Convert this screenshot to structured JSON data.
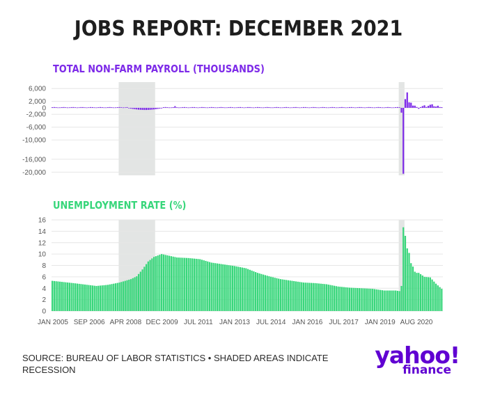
{
  "page": {
    "title": "JOBS REPORT: DECEMBER 2021"
  },
  "colors": {
    "payroll": "#7d2ae8",
    "unemployment": "#37d67a",
    "recession": "#e3e5e4",
    "text": "#1e1e1e",
    "grid": "#e6e6e6"
  },
  "chart_data": [
    {
      "type": "bar",
      "title": "TOTAL NON-FARM PAYROLL (THOUSANDS)",
      "ylim": [
        -21000,
        8000
      ],
      "y_ticks": [
        6000,
        2000,
        0,
        -2000,
        -6000,
        -10000,
        -16000,
        -20000
      ],
      "y_tick_labels": [
        "6,000",
        "2,000",
        "0",
        "-2,000",
        "-6,000",
        "-10,000",
        "-16,000",
        "-20,000"
      ],
      "recessions": [
        [
          "2007-12",
          "2009-06"
        ],
        [
          "2020-02",
          "2020-04"
        ]
      ],
      "x": [
        "2020-03",
        "2020-04",
        "2020-05",
        "2020-06",
        "2020-07",
        "2020-08",
        "2020-09",
        "2020-10",
        "2020-11",
        "2020-12",
        "2021-01",
        "2021-02",
        "2021-03",
        "2021-04",
        "2021-05",
        "2021-06",
        "2021-07",
        "2021-08",
        "2021-09",
        "2021-10",
        "2021-11",
        "2021-12"
      ],
      "values": [
        -1500,
        -20500,
        2700,
        4800,
        1700,
        1600,
        700,
        680,
        260,
        -300,
        230,
        540,
        780,
        280,
        610,
        960,
        1100,
        480,
        380,
        650,
        250,
        200
      ],
      "baseline_note": "",
      "grid": true
    },
    {
      "type": "bar",
      "title": "UNEMPLOYMENT RATE (%)",
      "ylim": [
        0,
        16
      ],
      "y_ticks": [
        0,
        2,
        4,
        6,
        8,
        10,
        12,
        14,
        16
      ],
      "y_tick_labels": [
        "0",
        "2",
        "4",
        "6",
        "8",
        "10",
        "12",
        "14",
        "16"
      ],
      "x_tick_labels": [
        "JAN 2005",
        "SEP 2006",
        "APR 2008",
        "DEC 2009",
        "JUL 2011",
        "JAN 2013",
        "JUL 2014",
        "JAN 2016",
        "JUL 2017",
        "JAN 2019",
        "AUG 2020"
      ],
      "recessions": [
        [
          "2007-12",
          "2009-06"
        ],
        [
          "2020-02",
          "2020-04"
        ]
      ],
      "x_start": "2005-01",
      "x_end": "2021-12",
      "keypoints": [
        [
          "2005-01",
          5.3
        ],
        [
          "2005-12",
          4.9
        ],
        [
          "2006-12",
          4.4
        ],
        [
          "2007-06",
          4.6
        ],
        [
          "2007-12",
          5.0
        ],
        [
          "2008-06",
          5.6
        ],
        [
          "2008-09",
          6.1
        ],
        [
          "2008-12",
          7.3
        ],
        [
          "2009-03",
          8.7
        ],
        [
          "2009-06",
          9.5
        ],
        [
          "2009-10",
          10.0
        ],
        [
          "2010-06",
          9.4
        ],
        [
          "2010-12",
          9.3
        ],
        [
          "2011-06",
          9.1
        ],
        [
          "2011-12",
          8.5
        ],
        [
          "2012-06",
          8.2
        ],
        [
          "2012-12",
          7.9
        ],
        [
          "2013-06",
          7.5
        ],
        [
          "2013-12",
          6.7
        ],
        [
          "2014-06",
          6.1
        ],
        [
          "2014-12",
          5.6
        ],
        [
          "2015-06",
          5.3
        ],
        [
          "2015-12",
          5.0
        ],
        [
          "2016-06",
          4.9
        ],
        [
          "2016-12",
          4.7
        ],
        [
          "2017-06",
          4.3
        ],
        [
          "2017-12",
          4.1
        ],
        [
          "2018-06",
          4.0
        ],
        [
          "2018-12",
          3.9
        ],
        [
          "2019-06",
          3.6
        ],
        [
          "2019-12",
          3.6
        ],
        [
          "2020-02",
          3.5
        ],
        [
          "2020-03",
          4.4
        ],
        [
          "2020-04",
          14.7
        ],
        [
          "2020-05",
          13.2
        ],
        [
          "2020-06",
          11.0
        ],
        [
          "2020-07",
          10.2
        ],
        [
          "2020-08",
          8.4
        ],
        [
          "2020-09",
          7.8
        ],
        [
          "2020-10",
          6.9
        ],
        [
          "2020-11",
          6.7
        ],
        [
          "2020-12",
          6.7
        ],
        [
          "2021-03",
          6.0
        ],
        [
          "2021-06",
          5.9
        ],
        [
          "2021-09",
          4.8
        ],
        [
          "2021-12",
          3.9
        ]
      ],
      "grid": true
    }
  ],
  "footer": {
    "source": "SOURCE: BUREAU OF LABOR STATISTICS • SHADED AREAS INDICATE RECESSION",
    "logo_main": "yahoo!",
    "logo_sub": "finance"
  }
}
